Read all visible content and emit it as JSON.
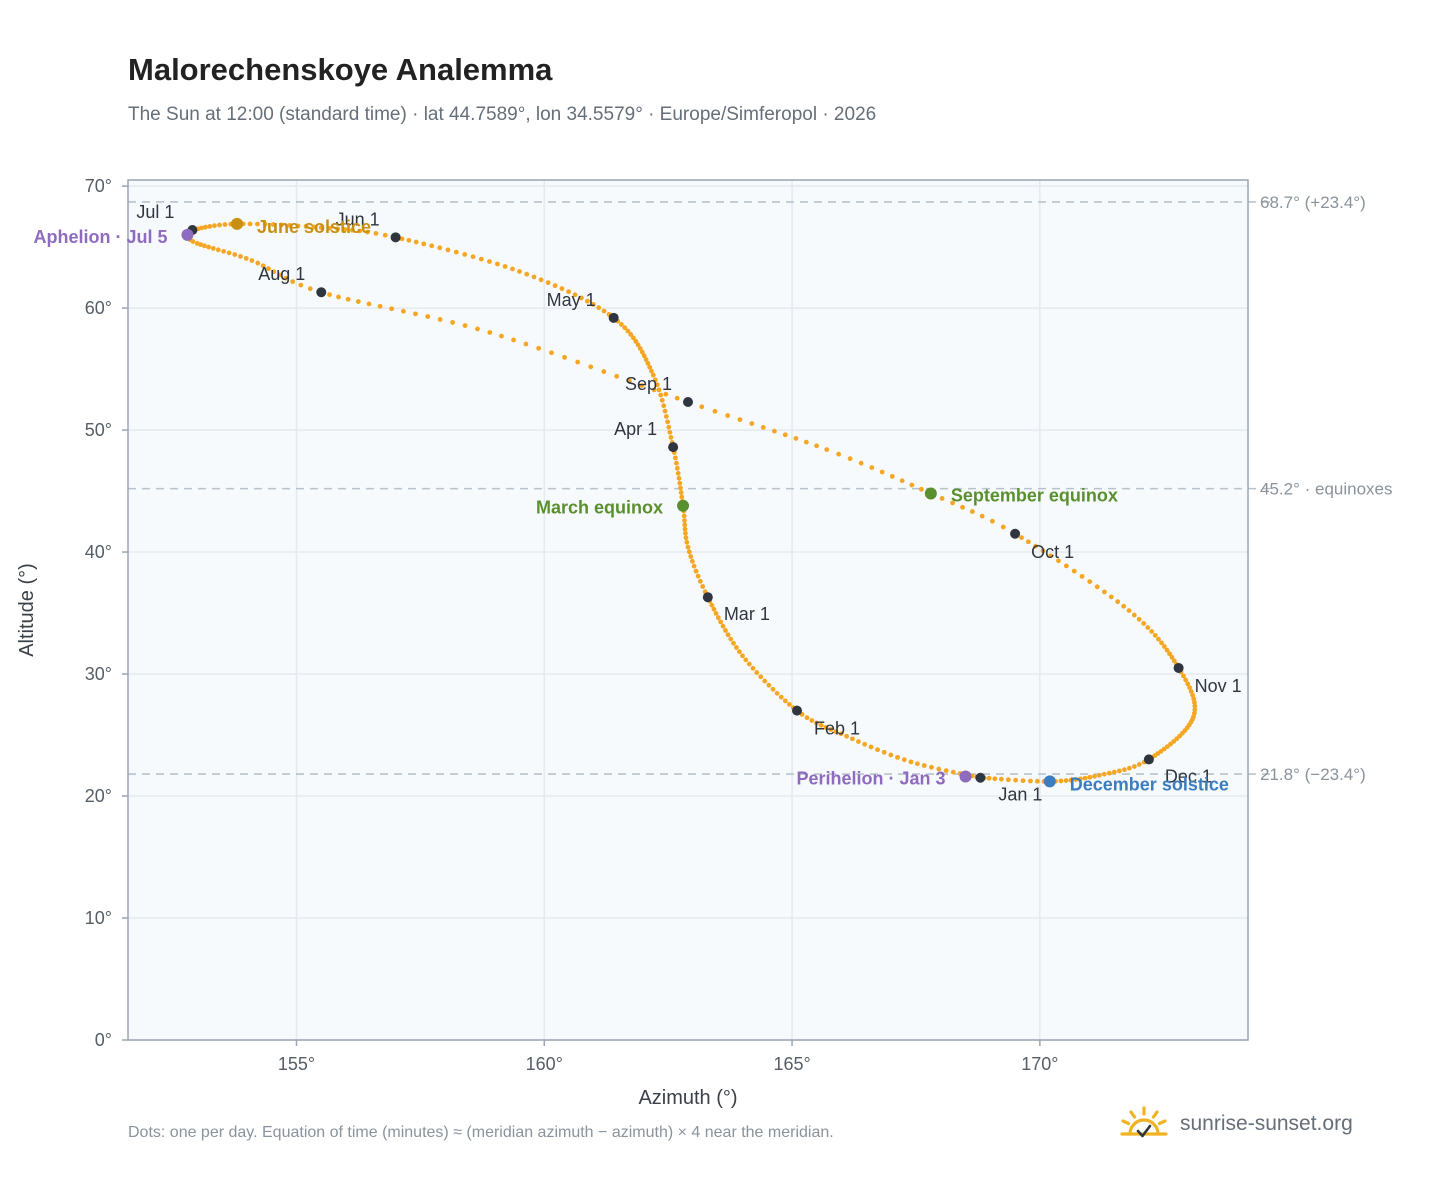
{
  "header": {
    "title": "Malorechenskoye Analemma",
    "subtitle": "The Sun at 12:00 (standard time) · lat 44.7589°, lon 34.5579° · Europe/Simferopol · 2026"
  },
  "footer": {
    "note": "Dots: one per day. Equation of time (minutes) ≈ (meridian azimuth − azimuth) × 4 near the meridian.",
    "brand": "sunrise-sunset.org"
  },
  "colors": {
    "path": "#f5a623",
    "month_dot": "#2f3640",
    "solstice_june": "#c98f12",
    "solstice_december": "#3b7dbf",
    "equinox": "#5a8f2e",
    "apsis": "#8e6bbf",
    "reference_line": "#b8c2cc",
    "plot_background": "#f7fafd",
    "frame": "#9aa5b1"
  },
  "chart_data": {
    "type": "scatter",
    "xlabel": "Azimuth (°)",
    "ylabel": "Altitude (°)",
    "xlim": [
      151.6,
      174.2
    ],
    "ylim": [
      0,
      70.5
    ],
    "xticks": [
      155,
      160,
      165,
      170
    ],
    "yticks": [
      0,
      10,
      20,
      30,
      40,
      50,
      60,
      70
    ],
    "tick_suffix": "°",
    "grid": true,
    "reference_lines": [
      {
        "y": 68.7,
        "label": "68.7° (+23.4°)"
      },
      {
        "y": 45.2,
        "label": "45.2° · equinoxes"
      },
      {
        "y": 21.8,
        "label": "21.8° (−23.4°)"
      }
    ],
    "path_waypoints": [
      {
        "day": 1,
        "az": 168.8,
        "alt": 21.5
      },
      {
        "day": 12,
        "az": 167.4,
        "alt": 22.8
      },
      {
        "day": 22,
        "az": 166.1,
        "alt": 24.9
      },
      {
        "day": 32,
        "az": 165.1,
        "alt": 27.0
      },
      {
        "day": 46,
        "az": 164.0,
        "alt": 31.5
      },
      {
        "day": 60,
        "az": 163.3,
        "alt": 36.3
      },
      {
        "day": 70,
        "az": 162.9,
        "alt": 40.4
      },
      {
        "day": 79,
        "az": 162.8,
        "alt": 43.8
      },
      {
        "day": 91,
        "az": 162.6,
        "alt": 48.6
      },
      {
        "day": 105,
        "az": 162.2,
        "alt": 54.5
      },
      {
        "day": 121,
        "az": 161.4,
        "alt": 59.2
      },
      {
        "day": 136,
        "az": 159.5,
        "alt": 63.0
      },
      {
        "day": 152,
        "az": 157.0,
        "alt": 65.8
      },
      {
        "day": 161,
        "az": 155.5,
        "alt": 66.6
      },
      {
        "day": 172,
        "az": 153.8,
        "alt": 66.9
      },
      {
        "day": 182,
        "az": 152.9,
        "alt": 66.4
      },
      {
        "day": 186,
        "az": 152.8,
        "alt": 66.0
      },
      {
        "day": 192,
        "az": 153.0,
        "alt": 65.3
      },
      {
        "day": 203,
        "az": 154.1,
        "alt": 63.9
      },
      {
        "day": 213,
        "az": 155.5,
        "alt": 61.3
      },
      {
        "day": 228,
        "az": 158.9,
        "alt": 58.0
      },
      {
        "day": 244,
        "az": 162.9,
        "alt": 52.3
      },
      {
        "day": 256,
        "az": 165.7,
        "alt": 48.4
      },
      {
        "day": 266,
        "az": 167.8,
        "alt": 44.8
      },
      {
        "day": 274,
        "az": 169.5,
        "alt": 41.5
      },
      {
        "day": 290,
        "az": 171.8,
        "alt": 35.2
      },
      {
        "day": 305,
        "az": 172.8,
        "alt": 30.5
      },
      {
        "day": 318,
        "az": 173.1,
        "alt": 26.5
      },
      {
        "day": 335,
        "az": 172.2,
        "alt": 23.0
      },
      {
        "day": 345,
        "az": 171.2,
        "alt": 21.7
      },
      {
        "day": 355,
        "az": 170.2,
        "alt": 21.2
      },
      {
        "day": 366,
        "az": 168.8,
        "alt": 21.5
      }
    ],
    "month_markers": [
      {
        "label": "Jan 1",
        "az": 168.8,
        "alt": 21.5,
        "anchor": "middle",
        "dx": 40,
        "dy": 23
      },
      {
        "label": "Feb 1",
        "az": 165.1,
        "alt": 27.0,
        "anchor": "start",
        "dx": 17,
        "dy": 24
      },
      {
        "label": "Mar 1",
        "az": 163.3,
        "alt": 36.3,
        "anchor": "start",
        "dx": 16,
        "dy": 23
      },
      {
        "label": "Apr 1",
        "az": 162.6,
        "alt": 48.6,
        "anchor": "end",
        "dx": -16,
        "dy": -12
      },
      {
        "label": "May 1",
        "az": 161.4,
        "alt": 59.2,
        "anchor": "end",
        "dx": -18,
        "dy": -12
      },
      {
        "label": "Jun 1",
        "az": 157.0,
        "alt": 65.8,
        "anchor": "end",
        "dx": -16,
        "dy": -12
      },
      {
        "label": "Jul 1",
        "az": 152.9,
        "alt": 66.4,
        "anchor": "end",
        "dx": -18,
        "dy": -12
      },
      {
        "label": "Aug 1",
        "az": 155.5,
        "alt": 61.3,
        "anchor": "end",
        "dx": -16,
        "dy": -12
      },
      {
        "label": "Sep 1",
        "az": 162.9,
        "alt": 52.3,
        "anchor": "end",
        "dx": -16,
        "dy": -12
      },
      {
        "label": "Oct 1",
        "az": 169.5,
        "alt": 41.5,
        "anchor": "start",
        "dx": 16,
        "dy": 24
      },
      {
        "label": "Nov 1",
        "az": 172.8,
        "alt": 30.5,
        "anchor": "start",
        "dx": 16,
        "dy": 24
      },
      {
        "label": "Dec 1",
        "az": 172.2,
        "alt": 23.0,
        "anchor": "start",
        "dx": 16,
        "dy": 23
      }
    ],
    "annotations": [
      {
        "label": "June solstice",
        "az": 153.8,
        "alt": 66.9,
        "color": "solstice_june",
        "anchor": "start",
        "dx": 20,
        "dy": 9
      },
      {
        "label": "December solstice",
        "az": 170.2,
        "alt": 21.2,
        "color": "solstice_december",
        "anchor": "start",
        "dx": 20,
        "dy": 9
      },
      {
        "label": "March equinox",
        "az": 162.8,
        "alt": 43.8,
        "color": "equinox",
        "anchor": "end",
        "dx": -20,
        "dy": 8
      },
      {
        "label": "September equinox",
        "az": 167.8,
        "alt": 44.8,
        "color": "equinox",
        "anchor": "start",
        "dx": 20,
        "dy": 8
      },
      {
        "label": "Aphelion · Jul 5",
        "az": 152.8,
        "alt": 66.0,
        "color": "apsis",
        "anchor": "end",
        "dx": -20,
        "dy": 8
      },
      {
        "label": "Perihelion · Jan 3",
        "az": 168.5,
        "alt": 21.6,
        "color": "apsis",
        "anchor": "end",
        "dx": -20,
        "dy": 8
      }
    ]
  }
}
